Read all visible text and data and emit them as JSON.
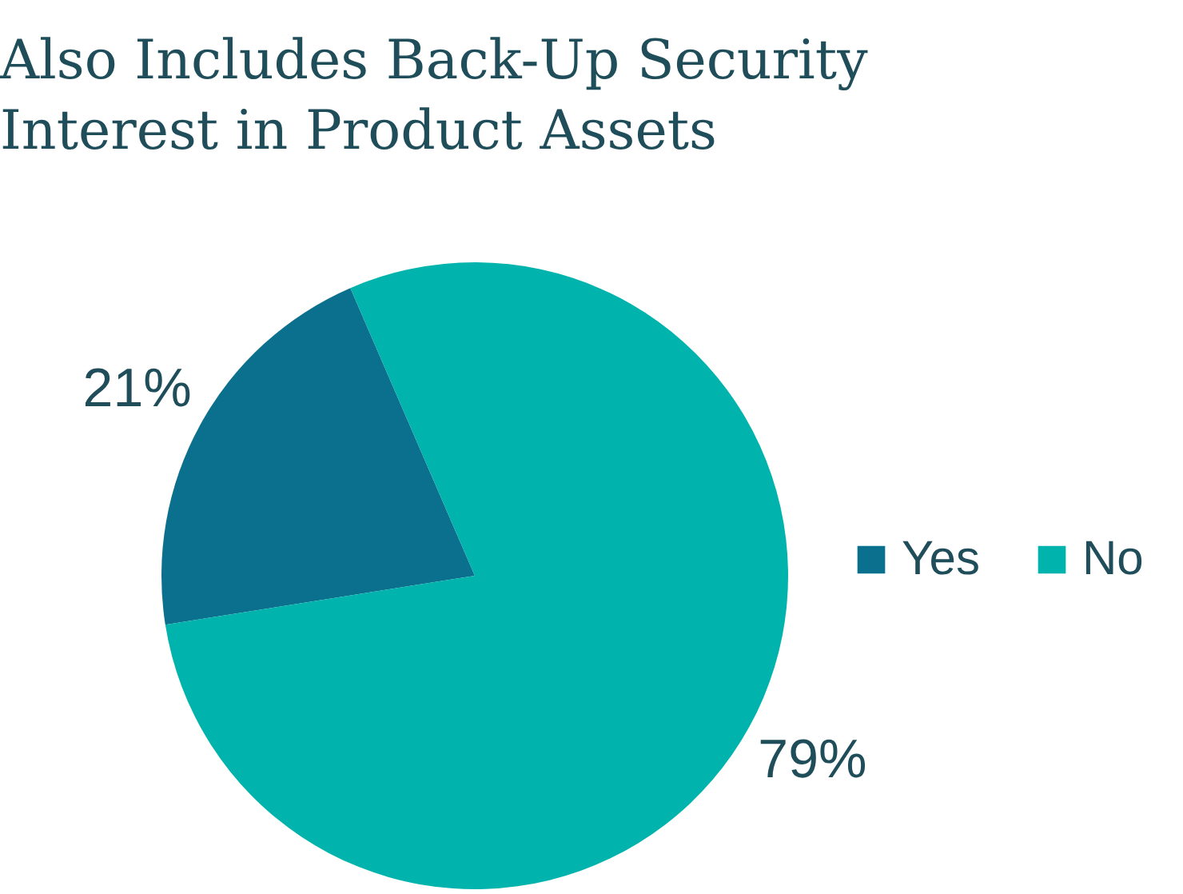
{
  "chart_data": {
    "type": "pie",
    "title": "Also Includes Back-Up Security\nInterest in Product Assets",
    "categories": [
      "Yes",
      "No"
    ],
    "values": [
      21,
      79
    ],
    "colors": [
      "#0b6f8e",
      "#00b3ac"
    ],
    "value_labels": [
      "21%",
      "79%"
    ],
    "legend": "right"
  }
}
